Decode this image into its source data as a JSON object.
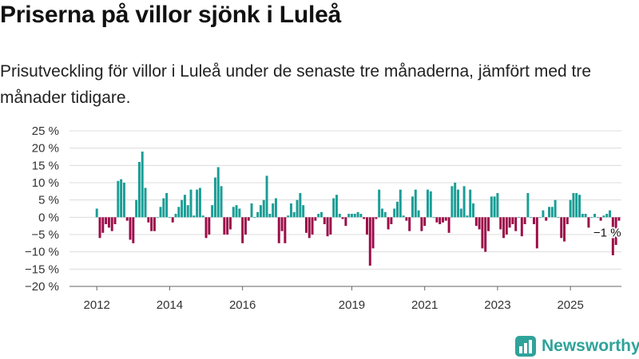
{
  "title": "Priserna på villor sjönk i Luleå",
  "subtitle": "Prisutveckling för villor i Luleå under de senaste tre månaderna, jämfört med tre månader tidigare.",
  "logo": {
    "text": "Newsworthy",
    "icon": "bar-chart-logo-icon"
  },
  "colors": {
    "positive": "#1a9e96",
    "negative": "#9b0c48",
    "logo": "#2fa39a"
  },
  "chart_data": {
    "type": "bar",
    "ylabel_suffix": " %",
    "ylim": [
      -20,
      25
    ],
    "yticks": [
      25,
      20,
      15,
      10,
      5,
      0,
      -5,
      -10,
      -15,
      -20
    ],
    "ytick_labels": [
      "25 %",
      "20 %",
      "15 %",
      "10 %",
      "5 %",
      "0 %",
      "−5 %",
      "−10 %",
      "−15 %",
      "−20 %"
    ],
    "xticks": [
      2012,
      2014,
      2016,
      2019,
      2021,
      2023,
      2025
    ],
    "xlim": [
      2011.25,
      2026.4
    ],
    "grid": true,
    "x_start": 2012.0,
    "x_step": 0.08333,
    "values": [
      2.5,
      -6,
      -4.5,
      -2,
      -3,
      -4,
      -2,
      10.5,
      11,
      10,
      -1,
      -6.5,
      -7.5,
      5,
      16,
      19,
      8.5,
      -1.5,
      -4,
      -4,
      0,
      3,
      5.5,
      7,
      0,
      -1.5,
      1,
      3,
      5,
      6.5,
      3.5,
      8,
      0.5,
      8,
      8.5,
      0.5,
      -6,
      -5,
      3.5,
      11.5,
      14.5,
      9,
      -5,
      -5,
      -3.5,
      3,
      3.5,
      2.5,
      -7.5,
      -5,
      -1,
      4,
      0,
      1.5,
      3.5,
      5,
      12,
      1,
      4,
      5.5,
      -7.5,
      -4,
      -7.5,
      0.5,
      4,
      1.5,
      5,
      7,
      3.5,
      -4.5,
      -6,
      -5,
      -1,
      1,
      1.5,
      -2,
      -5.5,
      -5,
      5.5,
      6.5,
      1,
      -0.5,
      -2.5,
      1,
      1,
      1,
      1.5,
      1,
      -0.5,
      -5,
      -14,
      -9,
      -0.5,
      8,
      2.5,
      1.5,
      -3.5,
      -2,
      2.5,
      4.5,
      8,
      0.5,
      -1,
      -4,
      6,
      8,
      2,
      -4,
      -2.5,
      8,
      7.5,
      0,
      -1.5,
      -2,
      -1.5,
      -1,
      -4.5,
      9,
      10,
      8,
      2.5,
      9,
      0.5,
      8,
      4,
      -2.5,
      -3.5,
      -9,
      -10,
      -4,
      6,
      6,
      7,
      -3.5,
      -6,
      -5,
      -3,
      -2,
      -4,
      0,
      -5.5,
      -2,
      7,
      0,
      -2,
      -9,
      0,
      2,
      -1,
      3,
      3,
      5,
      0,
      -6,
      -7,
      -2,
      5,
      7,
      7,
      6.5,
      1,
      1,
      -3,
      0,
      1,
      0,
      -1,
      0.5,
      1,
      2,
      -11,
      -8,
      -1
    ],
    "annotation": {
      "text": "−1 %",
      "index": 162
    }
  }
}
